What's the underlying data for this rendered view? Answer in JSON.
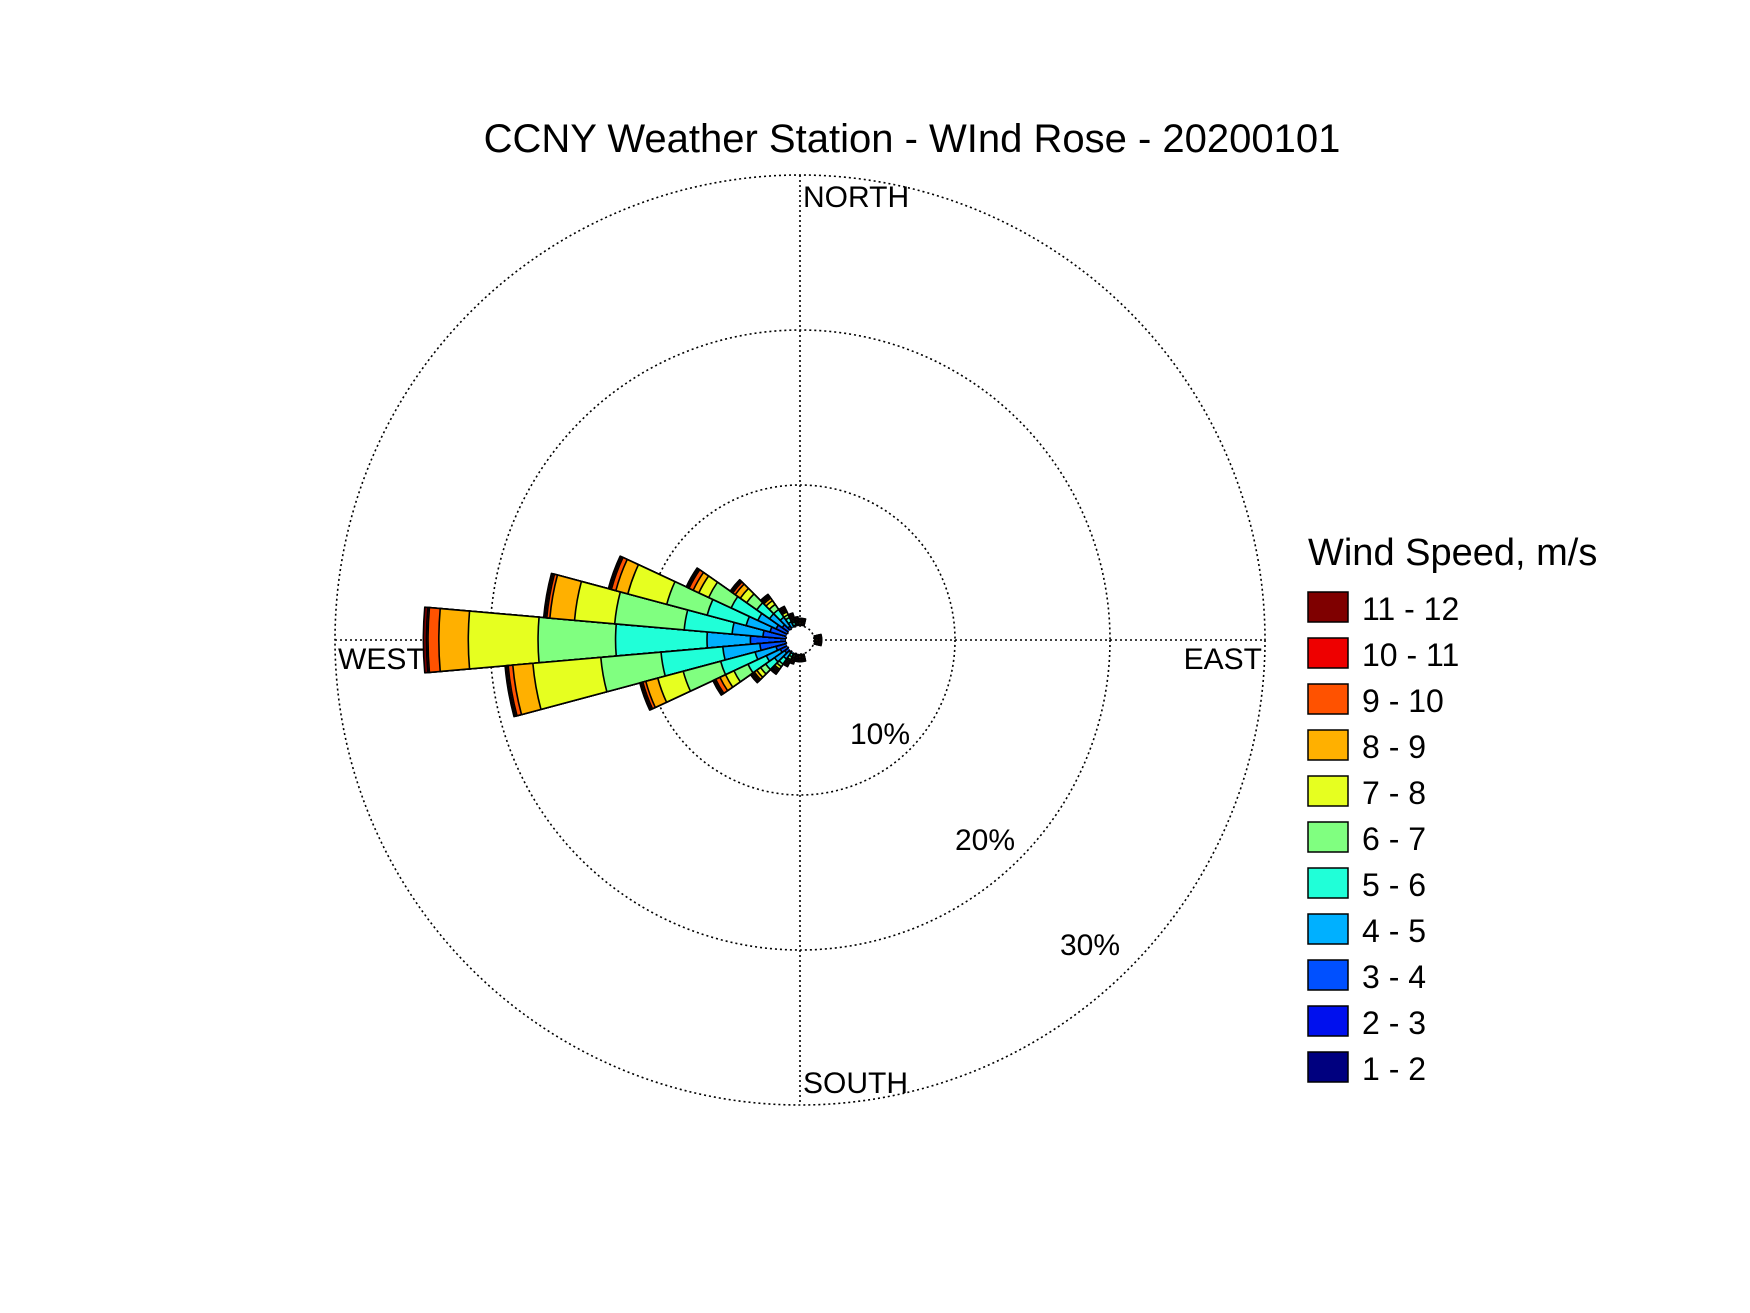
{
  "chart_data": {
    "type": "wind-rose",
    "title": "CCNY Weather Station - WInd Rose - 20200101",
    "direction_labels": {
      "north": "NORTH",
      "south": "SOUTH",
      "east": "EAST",
      "west": "WEST"
    },
    "rings": [
      10,
      20,
      30
    ],
    "ring_labels": [
      "10%",
      "20%",
      "30%"
    ],
    "r_max": 30,
    "grid": true,
    "sector_width_deg": 10,
    "legend": {
      "title": "Wind Speed, m/s",
      "placement": "right",
      "bins": [
        {
          "label": "11 - 12",
          "color": "#7f0000"
        },
        {
          "label": "10 - 11",
          "color": "#ee0000"
        },
        {
          "label": "9 - 10",
          "color": "#ff5200"
        },
        {
          "label": "8 - 9",
          "color": "#ffb000"
        },
        {
          "label": "7 - 8",
          "color": "#e6ff20"
        },
        {
          "label": "6 - 7",
          "color": "#80ff80"
        },
        {
          "label": "5 - 6",
          "color": "#20ffd8"
        },
        {
          "label": "4 - 5",
          "color": "#00b0ff"
        },
        {
          "label": "3 - 4",
          "color": "#0050ff"
        },
        {
          "label": "2 - 3",
          "color": "#0010ee"
        },
        {
          "label": "1 - 2",
          "color": "#00007f"
        }
      ]
    },
    "series_order": [
      "1 - 2",
      "2 - 3",
      "3 - 4",
      "4 - 5",
      "5 - 6",
      "6 - 7",
      "7 - 8",
      "8 - 9",
      "9 - 10",
      "10 - 11",
      "11 - 12"
    ],
    "sectors": [
      {
        "direction_deg": 270,
        "cumulative_percent": [
          0.4,
          0.9,
          3.2,
          6.0,
          11.9,
          16.9,
          21.4,
          23.3,
          24.0,
          24.1,
          24.3
        ]
      },
      {
        "direction_deg": 260,
        "cumulative_percent": [
          0.4,
          0.9,
          2.6,
          5.0,
          9.0,
          12.9,
          17.3,
          18.6,
          18.9,
          19.0,
          19.1
        ]
      },
      {
        "direction_deg": 280,
        "cumulative_percent": [
          0.4,
          0.8,
          2.4,
          4.4,
          7.5,
          12.0,
          14.6,
          16.2,
          16.4,
          16.5,
          16.6
        ]
      },
      {
        "direction_deg": 290,
        "cumulative_percent": [
          0.4,
          0.8,
          2.0,
          3.6,
          6.2,
          8.9,
          11.5,
          12.3,
          12.6,
          12.7,
          12.8
        ]
      },
      {
        "direction_deg": 250,
        "cumulative_percent": [
          0.4,
          0.8,
          1.6,
          3.0,
          5.3,
          7.8,
          9.5,
          10.3,
          10.5,
          10.6,
          10.7
        ]
      },
      {
        "direction_deg": 300,
        "cumulative_percent": [
          0.4,
          0.8,
          1.7,
          3.0,
          4.9,
          6.5,
          7.2,
          7.6,
          7.9,
          8.0,
          8.1
        ]
      },
      {
        "direction_deg": 240,
        "cumulative_percent": [
          0.4,
          0.7,
          1.4,
          2.4,
          3.7,
          4.7,
          5.3,
          5.7,
          6.0,
          6.1,
          6.2
        ]
      },
      {
        "direction_deg": 310,
        "cumulative_percent": [
          0.4,
          0.8,
          1.4,
          2.4,
          3.4,
          4.2,
          4.7,
          5.1,
          5.3,
          5.4,
          5.5
        ]
      },
      {
        "direction_deg": 230,
        "cumulative_percent": [
          0.4,
          0.7,
          1.2,
          2.0,
          2.7,
          3.1,
          3.4,
          3.6,
          3.7,
          3.8,
          3.9
        ]
      },
      {
        "direction_deg": 320,
        "cumulative_percent": [
          0.4,
          0.7,
          1.1,
          1.8,
          2.4,
          2.8,
          3.1,
          3.3,
          3.4,
          3.5,
          3.6
        ]
      },
      {
        "direction_deg": 220,
        "cumulative_percent": [
          0.4,
          0.7,
          1.0,
          1.5,
          1.9,
          2.1,
          2.3,
          2.4,
          2.5,
          2.6,
          2.7
        ]
      },
      {
        "direction_deg": 330,
        "cumulative_percent": [
          0.4,
          0.7,
          0.9,
          1.3,
          1.6,
          1.8,
          2.0,
          2.1,
          2.2,
          2.3,
          2.4
        ]
      },
      {
        "direction_deg": 210,
        "cumulative_percent": [
          0.4,
          0.6,
          0.8,
          1.0,
          1.2,
          1.4,
          1.5,
          1.6,
          1.7,
          1.8,
          1.9
        ]
      },
      {
        "direction_deg": 340,
        "cumulative_percent": [
          0.4,
          0.6,
          0.8,
          1.0,
          1.2,
          1.3,
          1.4,
          1.5,
          1.6,
          1.7,
          1.8
        ]
      },
      {
        "direction_deg": 200,
        "cumulative_percent": [
          0.4,
          0.6,
          0.7,
          0.9,
          1.0,
          1.1,
          1.2,
          1.3,
          1.4,
          1.5,
          1.6
        ]
      },
      {
        "direction_deg": 350,
        "cumulative_percent": [
          0.4,
          0.6,
          0.7,
          0.8,
          0.9,
          1.0,
          1.1,
          1.2,
          1.3,
          1.4,
          1.5
        ]
      },
      {
        "direction_deg": 190,
        "cumulative_percent": [
          0.4,
          0.5,
          0.6,
          0.7,
          0.8,
          0.9,
          1.0,
          1.1,
          1.2,
          1.3,
          1.4
        ]
      },
      {
        "direction_deg": 180,
        "cumulative_percent": [
          0.4,
          0.5,
          0.6,
          0.7,
          0.8,
          0.9,
          1.0,
          1.1,
          1.2,
          1.3,
          1.4
        ]
      },
      {
        "direction_deg": 0,
        "cumulative_percent": [
          0.4,
          0.5,
          0.6,
          0.7,
          0.8,
          0.9,
          1.0,
          1.1,
          1.2,
          1.3,
          1.4
        ]
      },
      {
        "direction_deg": 170,
        "cumulative_percent": [
          0.4,
          0.5,
          0.6,
          0.7,
          0.8,
          0.9,
          1.0,
          1.1,
          1.2,
          1.3,
          1.4
        ]
      },
      {
        "direction_deg": 10,
        "cumulative_percent": [
          0.4,
          0.5,
          0.6,
          0.7,
          0.8,
          0.9,
          1.0,
          1.1,
          1.2,
          1.3,
          1.4
        ]
      },
      {
        "direction_deg": 100,
        "cumulative_percent": [
          0.4,
          0.5,
          0.6,
          0.7,
          0.8,
          0.9,
          1.0,
          1.1,
          1.2,
          1.3,
          1.4
        ]
      },
      {
        "direction_deg": 90,
        "cumulative_percent": [
          0.4,
          0.5,
          0.6,
          0.7,
          0.8,
          0.9,
          1.0,
          1.1,
          1.2,
          1.3,
          1.4
        ]
      },
      {
        "direction_deg": 80,
        "cumulative_percent": [
          0.4,
          0.5,
          0.6,
          0.7,
          0.8,
          0.9,
          1.0,
          1.1,
          1.2,
          1.3,
          1.4
        ]
      }
    ]
  }
}
